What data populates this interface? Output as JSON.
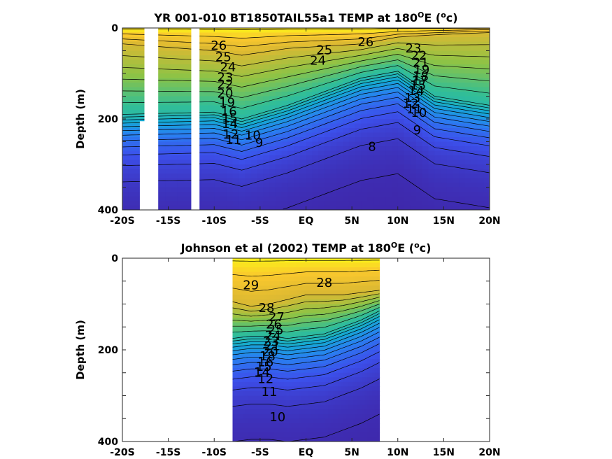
{
  "chart_data": [
    {
      "type": "heatmap",
      "title": "YR 001-010 BT1850TAIL55a1 TEMP at 180",
      "title_degree": "O",
      "title_tail": "E (",
      "title_unit_sup": "o",
      "title_unit_end": "c)",
      "ylabel": "Depth (m)",
      "xlim": [
        -20,
        20
      ],
      "ylim": [
        0,
        400
      ],
      "y_inverted": true,
      "x_ticks": [
        -20,
        -15,
        -10,
        -5,
        0,
        5,
        10,
        15,
        20
      ],
      "x_tick_labels": [
        "-20S",
        "-15S",
        "-10S",
        "-5S",
        "EQ",
        "5N",
        "10N",
        "15N",
        "20N"
      ],
      "y_ticks": [
        0,
        200,
        400
      ],
      "y_tick_labels": [
        "0",
        "200",
        "400"
      ],
      "data_extent_lat": [
        -20,
        20
      ],
      "missing_lat_bands": [
        [
          -17.6,
          -16.1
        ],
        [
          -12.5,
          -11.6
        ]
      ],
      "partial_missing": [
        {
          "lat": [
            -18.1,
            -17.6
          ],
          "depth": [
            205,
            400
          ]
        }
      ],
      "thermocline_profile": [
        {
          "lat": -20,
          "depth20": 190,
          "depth26": 35
        },
        {
          "lat": -10,
          "depth20": 185,
          "depth26": 50
        },
        {
          "lat": -7,
          "depth20": 200,
          "depth26": 60
        },
        {
          "lat": -2,
          "depth20": 170,
          "depth26": 45
        },
        {
          "lat": 2,
          "depth20": 140,
          "depth26": 40
        },
        {
          "lat": 6,
          "depth20": 110,
          "depth26": 35
        },
        {
          "lat": 10,
          "depth20": 95,
          "depth26": 20
        },
        {
          "lat": 14,
          "depth20": 150,
          "depth26": 15
        },
        {
          "lat": 20,
          "depth20": 170,
          "depth26": 10
        }
      ],
      "contour_labels": [
        {
          "text": "26",
          "lat": -9.5,
          "depth": 40
        },
        {
          "text": "25",
          "lat": -9,
          "depth": 65
        },
        {
          "text": "24",
          "lat": -8.5,
          "depth": 88
        },
        {
          "text": "23",
          "lat": -8.8,
          "depth": 110
        },
        {
          "text": "22",
          "lat": -8.8,
          "depth": 125
        },
        {
          "text": "20",
          "lat": -8.8,
          "depth": 145
        },
        {
          "text": "19",
          "lat": -8.6,
          "depth": 165
        },
        {
          "text": "16",
          "lat": -8.4,
          "depth": 185
        },
        {
          "text": "15",
          "lat": -8.3,
          "depth": 200
        },
        {
          "text": "14",
          "lat": -8.3,
          "depth": 212
        },
        {
          "text": "12",
          "lat": -8.2,
          "depth": 235
        },
        {
          "text": "11",
          "lat": -7.9,
          "depth": 248
        },
        {
          "text": "10",
          "lat": -5.8,
          "depth": 238
        },
        {
          "text": "9",
          "lat": -5.1,
          "depth": 254
        },
        {
          "text": "25",
          "lat": 2,
          "depth": 50
        },
        {
          "text": "24",
          "lat": 1.3,
          "depth": 73
        },
        {
          "text": "26",
          "lat": 6.5,
          "depth": 32
        },
        {
          "text": "23",
          "lat": 11.7,
          "depth": 46
        },
        {
          "text": "22",
          "lat": 12.3,
          "depth": 62
        },
        {
          "text": "21",
          "lat": 12.5,
          "depth": 78
        },
        {
          "text": "19",
          "lat": 12.6,
          "depth": 93
        },
        {
          "text": "18",
          "lat": 12.5,
          "depth": 108
        },
        {
          "text": "17",
          "lat": 12.4,
          "depth": 118
        },
        {
          "text": "15",
          "lat": 12.2,
          "depth": 128
        },
        {
          "text": "14",
          "lat": 12.0,
          "depth": 140
        },
        {
          "text": "13",
          "lat": 11.6,
          "depth": 155
        },
        {
          "text": "12",
          "lat": 11.4,
          "depth": 168
        },
        {
          "text": "11",
          "lat": 11.8,
          "depth": 180
        },
        {
          "text": "10",
          "lat": 12.3,
          "depth": 188
        },
        {
          "text": "9",
          "lat": 12.1,
          "depth": 226
        },
        {
          "text": "8",
          "lat": 7.2,
          "depth": 262
        }
      ]
    },
    {
      "type": "heatmap",
      "title": "Johnson et al (2002) TEMP at 180",
      "title_degree": "O",
      "title_tail": "E (",
      "title_unit_sup": "o",
      "title_unit_end": "c)",
      "ylabel": "Depth (m)",
      "xlim": [
        -20,
        20
      ],
      "ylim": [
        0,
        400
      ],
      "y_inverted": true,
      "x_ticks": [
        -20,
        -15,
        -10,
        -5,
        0,
        5,
        10,
        15,
        20
      ],
      "x_tick_labels": [
        "-20S",
        "-15S",
        "-10S",
        "-5S",
        "EQ",
        "5N",
        "10N",
        "15N",
        "20N"
      ],
      "y_ticks": [
        0,
        200,
        400
      ],
      "y_tick_labels": [
        "0",
        "200",
        "400"
      ],
      "data_extent_lat": [
        -8,
        8
      ],
      "missing_lat_bands": [],
      "partial_missing": [],
      "thermocline_profile": [
        {
          "lat": -8,
          "depth20": 175,
          "depth26": 95
        },
        {
          "lat": -6,
          "depth20": 170,
          "depth26": 105
        },
        {
          "lat": -4,
          "depth20": 170,
          "depth26": 100
        },
        {
          "lat": -2,
          "depth20": 175,
          "depth26": 90
        },
        {
          "lat": 0,
          "depth20": 170,
          "depth26": 80
        },
        {
          "lat": 2,
          "depth20": 165,
          "depth26": 80
        },
        {
          "lat": 4,
          "depth20": 150,
          "depth26": 80
        },
        {
          "lat": 6,
          "depth20": 135,
          "depth26": 75
        },
        {
          "lat": 8,
          "depth20": 115,
          "depth26": 70
        }
      ],
      "contour_labels": [
        {
          "text": "29",
          "lat": -6,
          "depth": 60
        },
        {
          "text": "28",
          "lat": 2,
          "depth": 55
        },
        {
          "text": "28",
          "lat": -4.3,
          "depth": 110
        },
        {
          "text": "27",
          "lat": -3.2,
          "depth": 130
        },
        {
          "text": "26",
          "lat": -3.5,
          "depth": 146
        },
        {
          "text": "25",
          "lat": -3.3,
          "depth": 158
        },
        {
          "text": "24",
          "lat": -3.6,
          "depth": 170
        },
        {
          "text": "23",
          "lat": -3.8,
          "depth": 183
        },
        {
          "text": "21",
          "lat": -3.7,
          "depth": 193
        },
        {
          "text": "20",
          "lat": -3.9,
          "depth": 205
        },
        {
          "text": "18",
          "lat": -4.2,
          "depth": 215
        },
        {
          "text": "16",
          "lat": -4.4,
          "depth": 228
        },
        {
          "text": "15",
          "lat": -4.6,
          "depth": 238
        },
        {
          "text": "14",
          "lat": -4.8,
          "depth": 250
        },
        {
          "text": "12",
          "lat": -4.4,
          "depth": 265
        },
        {
          "text": "11",
          "lat": -4.0,
          "depth": 293
        },
        {
          "text": "10",
          "lat": -3.1,
          "depth": 348
        }
      ]
    }
  ]
}
